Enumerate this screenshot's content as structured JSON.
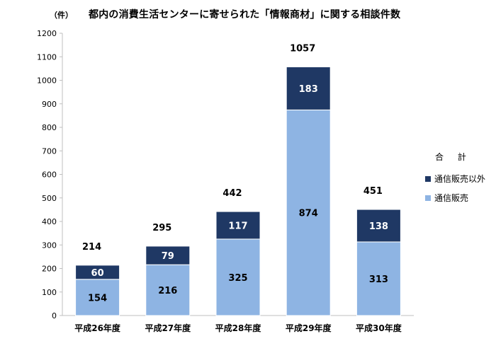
{
  "colors": {
    "online": "#8eb4e3",
    "other": "#1f3864",
    "axis": "#bfbfbf"
  },
  "chart_data": {
    "type": "bar",
    "stacked": true,
    "title": "都内の消費生活センターに寄せられた「情報商材」に関する相談件数",
    "unit_label": "（件）",
    "categories": [
      "平成26年度",
      "平成27年度",
      "平成28年度",
      "平成29年度",
      "平成30年度"
    ],
    "series": [
      {
        "name": "通信販売",
        "values": [
          154,
          216,
          325,
          874,
          313
        ],
        "color": "#8eb4e3"
      },
      {
        "name": "通信販売以外",
        "values": [
          60,
          79,
          117,
          183,
          138
        ],
        "color": "#1f3864"
      }
    ],
    "totals": [
      214,
      295,
      442,
      1057,
      451
    ],
    "totals_legend_label": "合 計",
    "ylim": [
      0,
      1200
    ],
    "yticks": [
      0,
      100,
      200,
      300,
      400,
      500,
      600,
      700,
      800,
      900,
      1000,
      1100,
      1200
    ],
    "grid": false,
    "legend_position": "right"
  }
}
